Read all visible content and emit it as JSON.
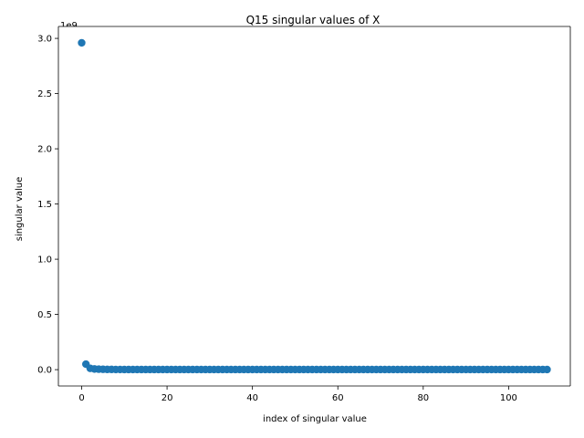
{
  "chart_data": {
    "type": "scatter",
    "title": "Q15 singular values of X",
    "xlabel": "index of singular value",
    "ylabel": "singular value",
    "y_offset_label": "1e9",
    "y_scale_factor": 1000000000,
    "xlim": [
      -5.45,
      114.45
    ],
    "ylim": [
      -0.148,
      3.108
    ],
    "xticks": [
      0,
      20,
      40,
      60,
      80,
      100
    ],
    "yticks": [
      0.0,
      0.5,
      1.0,
      1.5,
      2.0,
      2.5,
      3.0
    ],
    "xtick_labels": [
      "0",
      "20",
      "40",
      "60",
      "80",
      "100"
    ],
    "ytick_labels": [
      "0.0",
      "0.5",
      "1.0",
      "1.5",
      "2.0",
      "2.5",
      "3.0"
    ],
    "grid": false,
    "marker_color": "#1f77b4",
    "series": [
      {
        "x": [
          0,
          1,
          2,
          3,
          4,
          5,
          6,
          7,
          8,
          9,
          10,
          11,
          12,
          13,
          14,
          15,
          16,
          17,
          18,
          19,
          20,
          21,
          22,
          23,
          24,
          25,
          26,
          27,
          28,
          29,
          30,
          31,
          32,
          33,
          34,
          35,
          36,
          37,
          38,
          39,
          40,
          41,
          42,
          43,
          44,
          45,
          46,
          47,
          48,
          49,
          50,
          51,
          52,
          53,
          54,
          55,
          56,
          57,
          58,
          59,
          60,
          61,
          62,
          63,
          64,
          65,
          66,
          67,
          68,
          69,
          70,
          71,
          72,
          73,
          74,
          75,
          76,
          77,
          78,
          79,
          80,
          81,
          82,
          83,
          84,
          85,
          86,
          87,
          88,
          89,
          90,
          91,
          92,
          93,
          94,
          95,
          96,
          97,
          98,
          99,
          100,
          101,
          102,
          103,
          104,
          105,
          106,
          107,
          108,
          109
        ],
        "y": [
          2.96,
          0.05,
          0.012,
          0.006,
          0.004,
          0.003,
          0.002,
          0.002,
          0.0015,
          0.0012,
          0.001,
          0.001,
          0.001,
          0.001,
          0.001,
          0.001,
          0.001,
          0.001,
          0.001,
          0.001,
          0.001,
          0.001,
          0.001,
          0.001,
          0.001,
          0.001,
          0.001,
          0.001,
          0.001,
          0.001,
          0.001,
          0.001,
          0.001,
          0.001,
          0.001,
          0.001,
          0.001,
          0.001,
          0.001,
          0.001,
          0.001,
          0.001,
          0.001,
          0.001,
          0.001,
          0.001,
          0.001,
          0.001,
          0.001,
          0.001,
          0.001,
          0.001,
          0.001,
          0.001,
          0.001,
          0.001,
          0.001,
          0.001,
          0.001,
          0.001,
          0.001,
          0.001,
          0.001,
          0.001,
          0.001,
          0.001,
          0.001,
          0.001,
          0.001,
          0.001,
          0.001,
          0.001,
          0.001,
          0.001,
          0.001,
          0.001,
          0.001,
          0.001,
          0.001,
          0.001,
          0.001,
          0.001,
          0.001,
          0.001,
          0.001,
          0.001,
          0.001,
          0.001,
          0.001,
          0.001,
          0.001,
          0.001,
          0.001,
          0.001,
          0.001,
          0.001,
          0.001,
          0.001,
          0.001,
          0.001,
          0.001,
          0.001,
          0.001,
          0.001,
          0.001,
          0.001,
          0.001,
          0.001,
          0.001,
          0.001
        ]
      }
    ]
  }
}
